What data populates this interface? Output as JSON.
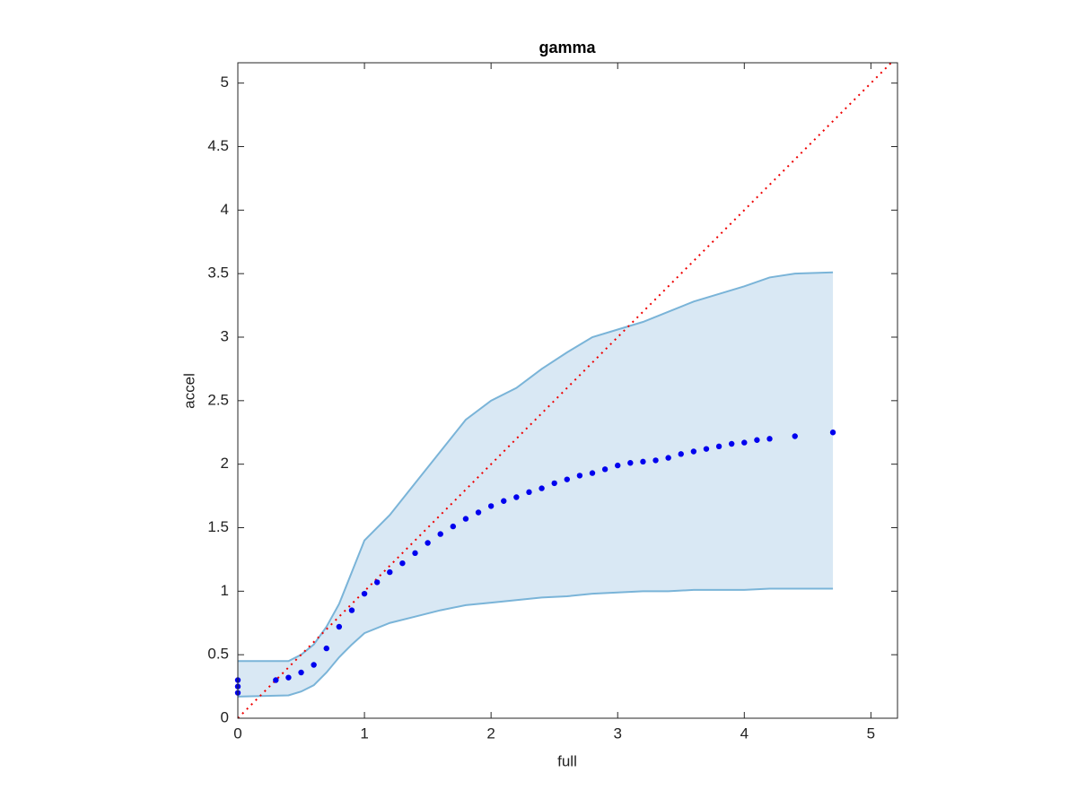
{
  "chart_data": {
    "type": "scatter",
    "title": "gamma",
    "x_label": "full",
    "y_label": "accel",
    "xlim": [
      0,
      5.21
    ],
    "ylim": [
      0,
      5.16
    ],
    "xticks": [
      0,
      1,
      2,
      3,
      4,
      5
    ],
    "yticks": [
      0,
      0.5,
      1,
      1.5,
      2,
      2.5,
      3,
      3.5,
      4,
      4.5,
      5
    ],
    "points": {
      "color": "#0000ee",
      "x": [
        0,
        0,
        0,
        0.3,
        0.4,
        0.5,
        0.6,
        0.7,
        0.8,
        0.9,
        1.0,
        1.1,
        1.2,
        1.3,
        1.4,
        1.5,
        1.6,
        1.7,
        1.8,
        1.9,
        2.0,
        2.1,
        2.2,
        2.3,
        2.4,
        2.5,
        2.6,
        2.7,
        2.8,
        2.9,
        3.0,
        3.1,
        3.2,
        3.3,
        3.4,
        3.5,
        3.6,
        3.7,
        3.8,
        3.9,
        4.0,
        4.1,
        4.2,
        4.4,
        4.7
      ],
      "y": [
        0.2,
        0.25,
        0.3,
        0.3,
        0.32,
        0.36,
        0.42,
        0.55,
        0.72,
        0.85,
        0.98,
        1.07,
        1.15,
        1.22,
        1.3,
        1.38,
        1.45,
        1.51,
        1.57,
        1.62,
        1.67,
        1.71,
        1.74,
        1.78,
        1.81,
        1.85,
        1.88,
        1.91,
        1.93,
        1.96,
        1.99,
        2.01,
        2.02,
        2.03,
        2.05,
        2.08,
        2.1,
        2.12,
        2.14,
        2.16,
        2.17,
        2.19,
        2.2,
        2.22,
        2.25
      ]
    },
    "band": {
      "color": "#7ab4d8",
      "fill": "#d9e8f4",
      "x": [
        0,
        0.4,
        0.5,
        0.6,
        0.7,
        0.8,
        0.9,
        1.0,
        1.2,
        1.4,
        1.6,
        1.8,
        2.0,
        2.2,
        2.4,
        2.6,
        2.8,
        3.0,
        3.2,
        3.4,
        3.6,
        3.8,
        4.0,
        4.2,
        4.4,
        4.7
      ],
      "upper": [
        0.45,
        0.45,
        0.5,
        0.58,
        0.72,
        0.9,
        1.15,
        1.4,
        1.6,
        1.85,
        2.1,
        2.35,
        2.5,
        2.6,
        2.75,
        2.88,
        3.0,
        3.06,
        3.12,
        3.2,
        3.28,
        3.34,
        3.4,
        3.47,
        3.5,
        3.51
      ],
      "lower": [
        0.17,
        0.18,
        0.21,
        0.26,
        0.36,
        0.48,
        0.58,
        0.67,
        0.75,
        0.8,
        0.85,
        0.89,
        0.91,
        0.93,
        0.95,
        0.96,
        0.98,
        0.99,
        1.0,
        1.0,
        1.01,
        1.01,
        1.01,
        1.02,
        1.02,
        1.02
      ]
    },
    "reference": {
      "color": "#ee0000",
      "x": [
        0,
        5.16
      ],
      "y": [
        0,
        5.16
      ]
    }
  }
}
